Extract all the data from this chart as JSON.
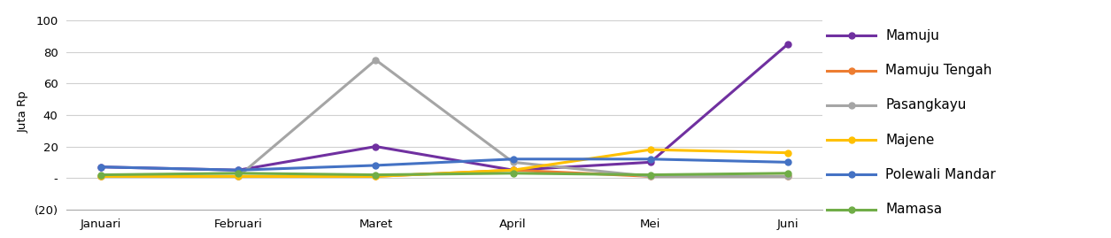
{
  "months": [
    "Januari",
    "Februari",
    "Maret",
    "April",
    "Mei",
    "Juni"
  ],
  "series": [
    {
      "label": "Mamuju",
      "color": "#7030A0",
      "values": [
        7,
        5,
        20,
        5,
        10,
        85
      ]
    },
    {
      "label": "Mamuju Tengah",
      "color": "#ED7D31",
      "values": [
        1,
        1,
        1,
        5,
        1,
        1
      ]
    },
    {
      "label": "Pasangkayu",
      "color": "#A5A5A5",
      "values": [
        1,
        1,
        75,
        10,
        1,
        1
      ]
    },
    {
      "label": "Majene",
      "color": "#FFC000",
      "values": [
        1,
        1,
        1,
        5,
        18,
        16
      ]
    },
    {
      "label": "Polewali Mandar",
      "color": "#4472C4",
      "values": [
        7,
        5,
        8,
        12,
        12,
        10
      ]
    },
    {
      "label": "Mamasa",
      "color": "#70AD47",
      "values": [
        2,
        3,
        2,
        3,
        2,
        3
      ]
    }
  ],
  "ylabel": "Juta Rp",
  "ylim": [
    -20,
    104
  ],
  "yticks": [
    -20,
    0,
    20,
    40,
    60,
    80,
    100
  ],
  "ytick_labels": [
    "(20)",
    "-",
    "20",
    "40",
    "60",
    "80",
    "100"
  ],
  "background_color": "#FFFFFF",
  "plot_background": "#FFFFFF",
  "navy_color": "#1F3864",
  "legend_fontsize": 11,
  "axis_fontsize": 9.5
}
